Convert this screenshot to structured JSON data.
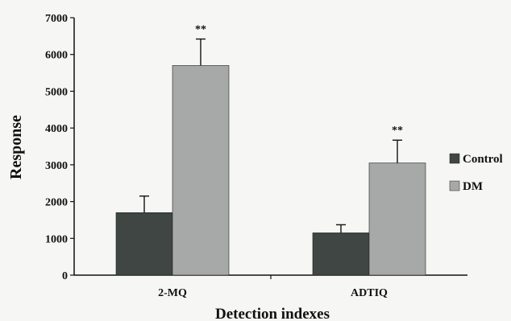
{
  "chart_data": {
    "type": "bar",
    "title": "",
    "xlabel": "Detection indexes",
    "ylabel": "Response",
    "ylim": [
      0,
      7000
    ],
    "yticks": [
      0,
      1000,
      2000,
      3000,
      4000,
      5000,
      6000,
      7000
    ],
    "categories": [
      "2-MQ",
      "ADTIQ"
    ],
    "series": [
      {
        "name": "Control",
        "color": "#3f4644",
        "values": [
          1700,
          1150
        ],
        "errors": [
          450,
          220
        ]
      },
      {
        "name": "DM",
        "color": "#a6a9a8",
        "values": [
          5700,
          3050
        ],
        "errors": [
          720,
          620
        ]
      }
    ],
    "annotations": [
      {
        "category": "2-MQ",
        "series": "DM",
        "text": "**"
      },
      {
        "category": "ADTIQ",
        "series": "DM",
        "text": "**"
      }
    ],
    "grid": false,
    "legend": "right"
  }
}
